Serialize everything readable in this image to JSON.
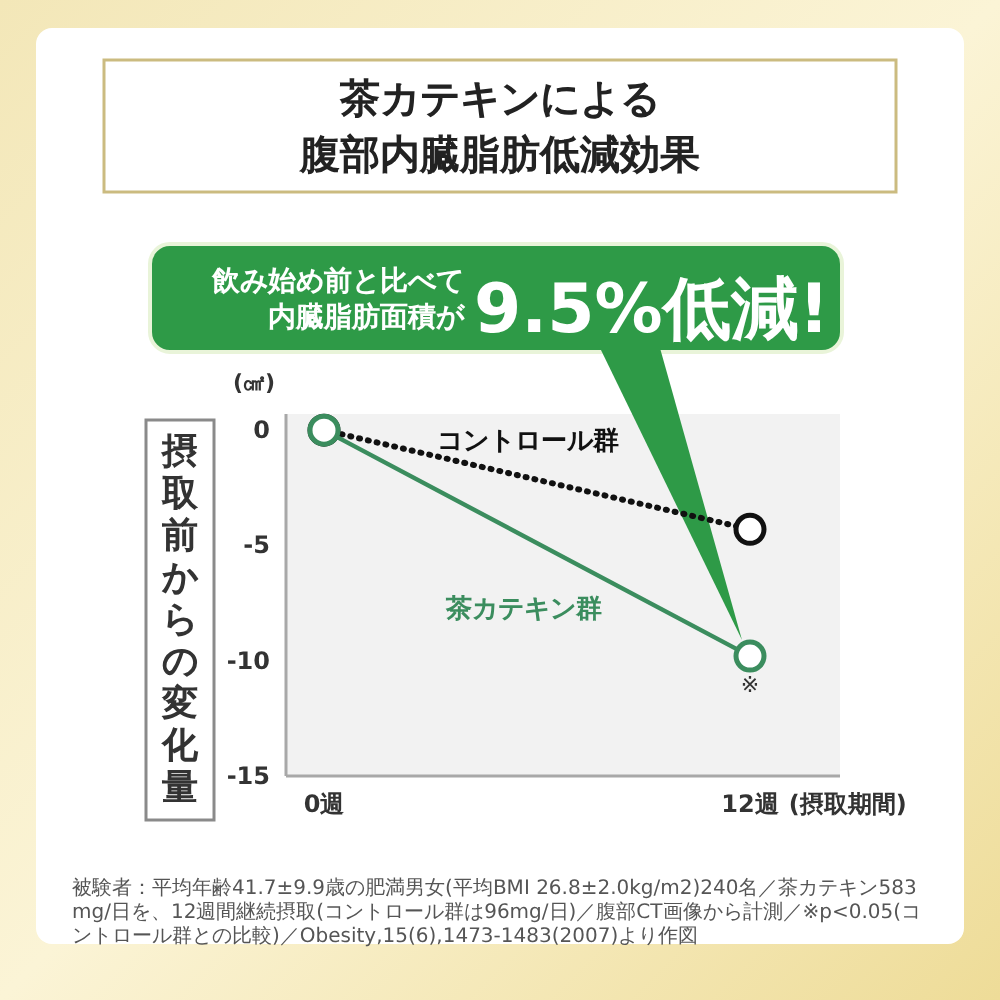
{
  "chart_data": {
    "type": "line",
    "title": "茶カテキンによる",
    "subtitle": "腹部内臓脂肪低減効果",
    "ylabel": "摂取前からの変化量",
    "xlabel": "(摂取期間)",
    "categories": [
      "0週",
      "12週"
    ],
    "ylim": [
      -15,
      0.7
    ],
    "yticks": [
      0,
      -5,
      -10,
      -15
    ],
    "marker": "circle",
    "series": [
      {
        "name": "コントロール群",
        "color": "#111111",
        "line_style": "dotted",
        "values": [
          0,
          -4.3
        ]
      },
      {
        "name": "茶カテキン群",
        "color": "#3b8d5e",
        "line_style": "solid",
        "values": [
          0,
          -9.8
        ]
      }
    ],
    "annotations": [
      "(㎠)",
      {
        "text": "飲み始め前と比べて内臓脂肪面積が9.5%低減!",
        "x": "12週",
        "y": -9.8
      },
      {
        "text": "※",
        "x": "12週",
        "y": -9.8
      },
      "被験者：平均年齢41.7±9.9歳の肥満男女(平均BMI 26.8±2.0kg/m2)240名／茶カテキン583mg/日を、12週間継続摂取(コントロール群は96mg/日)／腹部CT画像から計測／※p<0.05(コントロール群との比較)／Obesity,15(6),1473-1483(2007)より作図"
    ]
  }
}
